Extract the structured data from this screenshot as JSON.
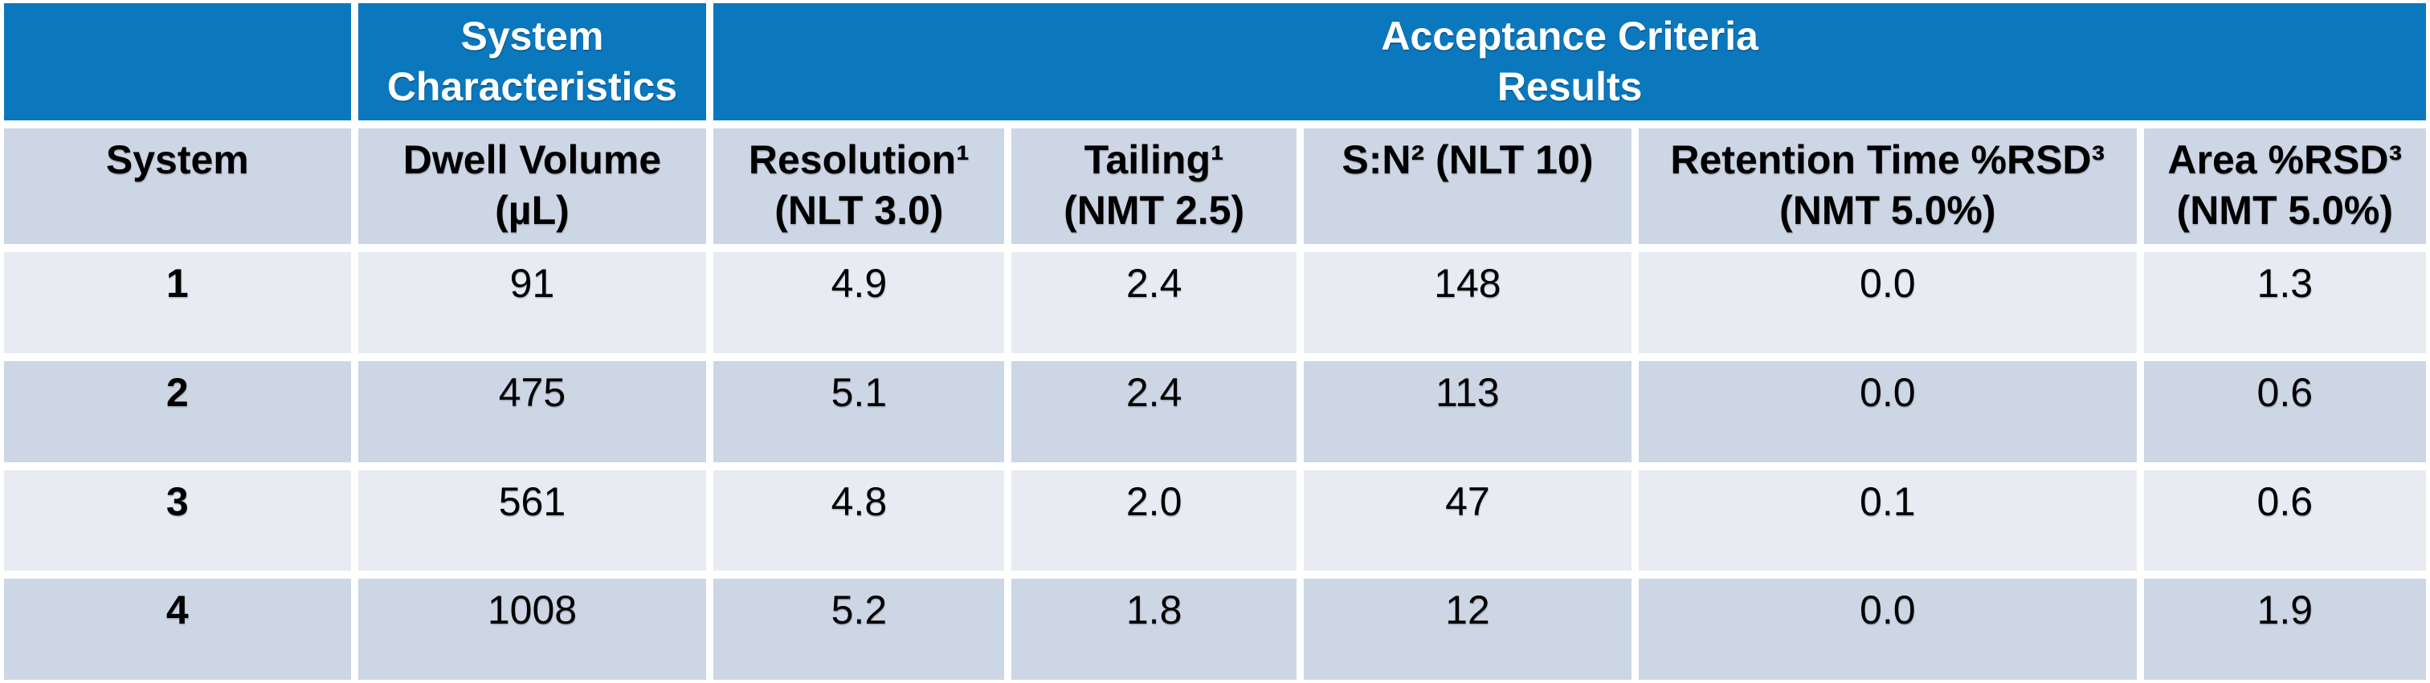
{
  "table": {
    "title_row": {
      "blank": "",
      "system_characteristics": "System\nCharacteristics",
      "acceptance_criteria": "Acceptance Criteria\nResults"
    },
    "columns": [
      "System",
      "Dwell Volume\n(µL)",
      "Resolution¹\n(NLT 3.0)",
      "Tailing¹\n(NMT 2.5)",
      "S:N² (NLT 10)",
      "Retention Time %RSD³\n(NMT 5.0%)",
      "Area %RSD³\n(NMT 5.0%)"
    ],
    "rows": [
      {
        "cells": [
          "1",
          "91",
          "4.9",
          "2.4",
          "148",
          "0.0",
          "1.3"
        ]
      },
      {
        "cells": [
          "2",
          "475",
          "5.1",
          "2.4",
          "113",
          "0.0",
          "0.6"
        ]
      },
      {
        "cells": [
          "3",
          "561",
          "4.8",
          "2.0",
          "47",
          "0.1",
          "0.6"
        ]
      },
      {
        "cells": [
          "4",
          "1008",
          "5.2",
          "1.8",
          "12",
          "0.0",
          "1.9"
        ]
      }
    ],
    "colors": {
      "header_blue": "#0b78be",
      "header_band": "#ccd6e5",
      "row_light": "#e8ebf2",
      "row_medium": "#ccd6e5",
      "header_text": "#ffffff",
      "body_text": "#000000",
      "grid_background": "#ffffff"
    }
  }
}
